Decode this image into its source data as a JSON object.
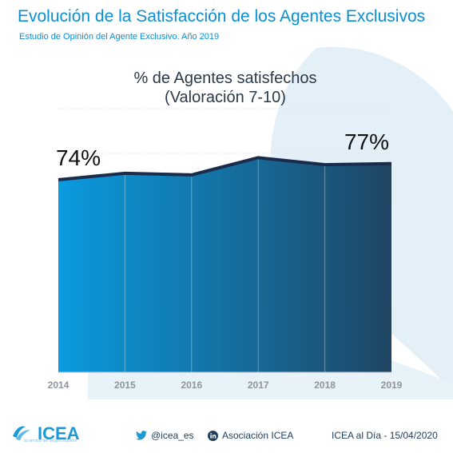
{
  "header": {
    "title": "Evolución de la Satisfacción de los Agentes Exclusivos",
    "subtitle": "Estudio de Opinión del Agente Exclusivo. Año 2019"
  },
  "chart_data": {
    "type": "area",
    "title_line1": "% de Agentes satisfechos",
    "title_line2": "(Valoración 7-10)",
    "categories": [
      "2014",
      "2015",
      "2016",
      "2017",
      "2018",
      "2019"
    ],
    "values": [
      74,
      75.2,
      74.9,
      78.1,
      76.8,
      77
    ],
    "data_labels": [
      {
        "category": "2014",
        "text": "74%"
      },
      {
        "category": "2019",
        "text": "77%"
      }
    ],
    "xlabel": "",
    "ylabel": "",
    "grid": true,
    "legend": "none",
    "colors": {
      "fill_start": "#0a9be0",
      "fill_end": "#1f4563",
      "line": "#1b2c4a",
      "tick_label": "#8f959c",
      "title": "#2b3a4a"
    }
  },
  "footer": {
    "logo_text": "ICEA",
    "logo_tagline": "al servicio del seguro español",
    "twitter_handle": "@icea_es",
    "linkedin_name": "Asociación ICEA",
    "source_date": "ICEA al Día - 15/04/2020"
  },
  "icons": {
    "logo": "icea-wave-icon",
    "twitter": "twitter-icon",
    "linkedin": "linkedin-icon"
  }
}
